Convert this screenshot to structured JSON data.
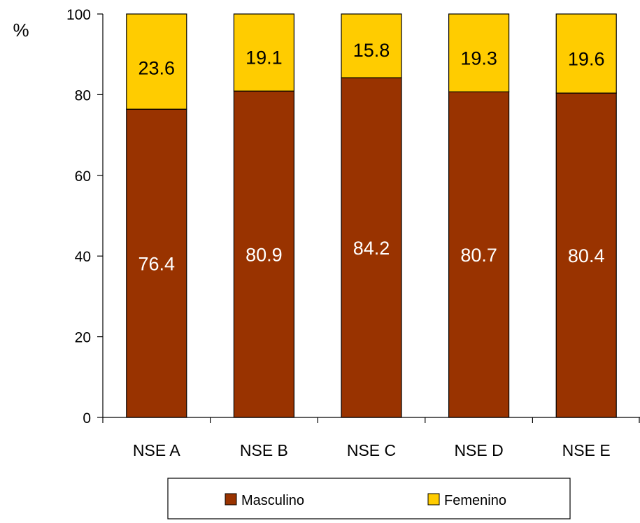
{
  "chart_data": {
    "type": "bar",
    "stacked": true,
    "title": "",
    "xlabel": "",
    "ylabel": "%",
    "categories": [
      "NSE A",
      "NSE B",
      "NSE C",
      "NSE D",
      "NSE E"
    ],
    "series": [
      {
        "name": "Masculino",
        "values": [
          76.4,
          80.9,
          84.2,
          80.7,
          80.4
        ],
        "color": "#993300",
        "label_color": "#ffffff"
      },
      {
        "name": "Femenino",
        "values": [
          23.6,
          19.1,
          15.8,
          19.3,
          19.6
        ],
        "color": "#ffcc00",
        "label_color": "#000000"
      }
    ],
    "data_labels": [
      [
        "76.4",
        "80.9",
        "84.2",
        "80.7",
        "80.4"
      ],
      [
        "23.6",
        "19.1",
        "15.8",
        "19.3",
        "19.6"
      ]
    ],
    "ylim": [
      0,
      100
    ],
    "yticks": [
      0,
      20,
      40,
      60,
      80,
      100
    ],
    "ytick_labels": [
      "0",
      "20",
      "40",
      "60",
      "80",
      "100"
    ],
    "grid": false,
    "legend_position": "bottom"
  }
}
